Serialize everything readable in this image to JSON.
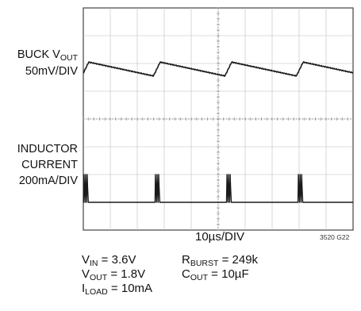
{
  "channels": {
    "buck": {
      "name": "BUCK V",
      "sub": "OUT",
      "scale": "50mV/DIV"
    },
    "inductor": {
      "line1": "INDUCTOR",
      "line2": "CURRENT",
      "scale": "200mA/DIV"
    }
  },
  "timebase": "10µs/DIV",
  "figure_code": "3520 G22",
  "conditions": [
    {
      "prefix": "V",
      "sub": "IN",
      "rest": " = 3.6V"
    },
    {
      "prefix": "V",
      "sub": "OUT",
      "rest": " = 1.8V"
    },
    {
      "prefix": "I",
      "sub": "LOAD",
      "rest": " = 10mA"
    },
    {
      "prefix": "R",
      "sub": "BURST",
      "rest": " = 249k"
    },
    {
      "prefix": "C",
      "sub": "OUT",
      "rest": " = 10µF"
    }
  ],
  "chart_data": {
    "type": "line",
    "grid": true,
    "divisions": {
      "x": 10,
      "y": 8
    },
    "x_unit": "µs",
    "x_range": [
      0,
      100
    ],
    "series": [
      {
        "name": "BUCK VOUT",
        "pattern": "sawtooth",
        "period_us": 26.5,
        "first_peak_us": 2.0,
        "ramp_down_mV": 25,
        "rise_time_us": 2.5
      },
      {
        "name": "INDUCTOR CURRENT",
        "pattern": "burst-pulses",
        "pulse_times_us": [
          1,
          27.5,
          54,
          80.5
        ],
        "pulse_peak_mA": 200,
        "pulse_width_us": 1.8
      }
    ]
  }
}
